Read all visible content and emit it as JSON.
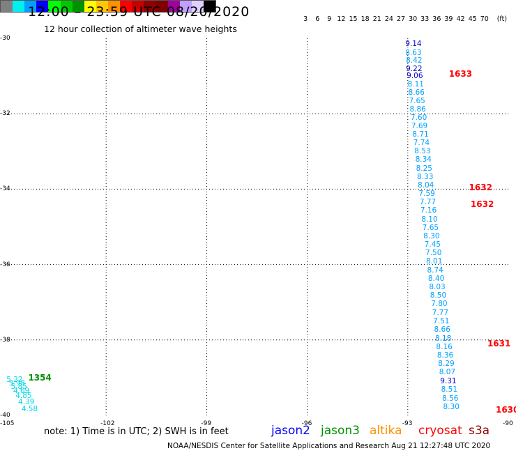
{
  "header": {
    "title": "12:00 – 23:59 UTC 08/20/2020",
    "subtitle": "12 hour collection of altimeter wave heights"
  },
  "legend": {
    "unit": "(ft)",
    "colors": [
      "#808080",
      "#00f0f0",
      "#00a0ff",
      "#0000ff",
      "#00ff00",
      "#00c800",
      "#009000",
      "#ffff00",
      "#ffc800",
      "#ff9000",
      "#ff0000",
      "#c80000",
      "#900000",
      "#800000",
      "#a000a0",
      "#c0a0ff",
      "#e0d0ff",
      "#000000"
    ],
    "ticks": [
      "3",
      "6",
      "9",
      "12",
      "15",
      "18",
      "21",
      "24",
      "27",
      "30",
      "33",
      "36",
      "39",
      "42",
      "45",
      "70"
    ]
  },
  "map": {
    "lon_range": [
      -105,
      -90
    ],
    "lat_range": [
      -40,
      -30
    ],
    "x_ticks": [
      "-105",
      "-102",
      "-99",
      "-96",
      "-93",
      "-90"
    ],
    "y_ticks": [
      "-30",
      "-32",
      "-34",
      "-36",
      "-38",
      "-40"
    ],
    "gridlines": true
  },
  "tracks": [
    {
      "satellite": "jason3",
      "color": "#009000",
      "time_labels": [
        {
          "text": "1354",
          "lon": -104.2,
          "lat": -39.0
        }
      ],
      "wave_heights": [
        {
          "text": "5.22",
          "lon": -104.85,
          "lat": -39.05,
          "color": "#00d8e8"
        },
        {
          "text": "5.98",
          "lon": -104.78,
          "lat": -39.15,
          "color": "#00d8e8"
        },
        {
          "text": "5.85",
          "lon": -104.72,
          "lat": -39.25,
          "color": "#00d8e8"
        },
        {
          "text": "4.69",
          "lon": -104.65,
          "lat": -39.35,
          "color": "#00d8e8"
        },
        {
          "text": "4.85",
          "lon": -104.58,
          "lat": -39.48,
          "color": "#00d8e8"
        },
        {
          "text": "4.39",
          "lon": -104.5,
          "lat": -39.65,
          "color": "#00d8e8"
        },
        {
          "text": "4.58",
          "lon": -104.4,
          "lat": -39.83,
          "color": "#00d8e8"
        }
      ]
    },
    {
      "satellite": "cryosat",
      "color": "#ff0000",
      "time_labels": [
        {
          "text": "1633",
          "lon": -91.65,
          "lat": -30.95
        },
        {
          "text": "1632",
          "lon": -91.05,
          "lat": -33.95
        },
        {
          "text": "1632",
          "lon": -91.0,
          "lat": -34.4
        },
        {
          "text": "1631",
          "lon": -90.5,
          "lat": -38.1
        },
        {
          "text": "1630",
          "lon": -90.25,
          "lat": -39.85
        }
      ],
      "wave_heights": [
        {
          "text": "9.14",
          "lon": -92.95,
          "lat": -30.15,
          "color": "#0000c8"
        },
        {
          "text": "8.63",
          "lon": -92.95,
          "lat": -30.38,
          "color": "#00a0ff"
        },
        {
          "text": "8.42",
          "lon": -92.93,
          "lat": -30.6,
          "color": "#00a0ff"
        },
        {
          "text": "9.22",
          "lon": -92.93,
          "lat": -30.82,
          "color": "#0000c8"
        },
        {
          "text": "9.06",
          "lon": -92.91,
          "lat": -31.0,
          "color": "#0000c8"
        },
        {
          "text": "8.11",
          "lon": -92.88,
          "lat": -31.22,
          "color": "#00a0ff"
        },
        {
          "text": "8.66",
          "lon": -92.86,
          "lat": -31.45,
          "color": "#00a0ff"
        },
        {
          "text": "7.65",
          "lon": -92.84,
          "lat": -31.66,
          "color": "#00a0ff"
        },
        {
          "text": "8.86",
          "lon": -92.82,
          "lat": -31.88,
          "color": "#00a0ff"
        },
        {
          "text": "7.60",
          "lon": -92.79,
          "lat": -32.1,
          "color": "#00a0ff"
        },
        {
          "text": "7.69",
          "lon": -92.77,
          "lat": -32.32,
          "color": "#00a0ff"
        },
        {
          "text": "8.71",
          "lon": -92.74,
          "lat": -32.55,
          "color": "#00a0ff"
        },
        {
          "text": "7.74",
          "lon": -92.71,
          "lat": -32.77,
          "color": "#00a0ff"
        },
        {
          "text": "8.53",
          "lon": -92.68,
          "lat": -33.0,
          "color": "#00a0ff"
        },
        {
          "text": "8.34",
          "lon": -92.65,
          "lat": -33.22,
          "color": "#00a0ff"
        },
        {
          "text": "8.25",
          "lon": -92.63,
          "lat": -33.45,
          "color": "#00a0ff"
        },
        {
          "text": "8.33",
          "lon": -92.6,
          "lat": -33.67,
          "color": "#00a0ff"
        },
        {
          "text": "8.04",
          "lon": -92.58,
          "lat": -33.9,
          "color": "#00a0ff"
        },
        {
          "text": "7.59",
          "lon": -92.55,
          "lat": -34.12,
          "color": "#00a0ff"
        },
        {
          "text": "7.77",
          "lon": -92.52,
          "lat": -34.35,
          "color": "#00a0ff"
        },
        {
          "text": "7.16",
          "lon": -92.5,
          "lat": -34.57,
          "color": "#00a0ff"
        },
        {
          "text": "8.10",
          "lon": -92.47,
          "lat": -34.8,
          "color": "#00a0ff"
        },
        {
          "text": "7.65",
          "lon": -92.44,
          "lat": -35.02,
          "color": "#00a0ff"
        },
        {
          "text": "8.30",
          "lon": -92.41,
          "lat": -35.25,
          "color": "#00a0ff"
        },
        {
          "text": "7.45",
          "lon": -92.38,
          "lat": -35.47,
          "color": "#00a0ff"
        },
        {
          "text": "7.50",
          "lon": -92.35,
          "lat": -35.7,
          "color": "#00a0ff"
        },
        {
          "text": "8.01",
          "lon": -92.33,
          "lat": -35.92,
          "color": "#00a0ff"
        },
        {
          "text": "8.74",
          "lon": -92.3,
          "lat": -36.15,
          "color": "#00a0ff"
        },
        {
          "text": "8.40",
          "lon": -92.27,
          "lat": -36.37,
          "color": "#00a0ff"
        },
        {
          "text": "8.03",
          "lon": -92.24,
          "lat": -36.6,
          "color": "#00a0ff"
        },
        {
          "text": "8.50",
          "lon": -92.21,
          "lat": -36.82,
          "color": "#00a0ff"
        },
        {
          "text": "7.80",
          "lon": -92.18,
          "lat": -37.05,
          "color": "#00a0ff"
        },
        {
          "text": "7.77",
          "lon": -92.15,
          "lat": -37.28,
          "color": "#00a0ff"
        },
        {
          "text": "7.51",
          "lon": -92.12,
          "lat": -37.5,
          "color": "#00a0ff"
        },
        {
          "text": "8.66",
          "lon": -92.09,
          "lat": -37.73,
          "color": "#00a0ff"
        },
        {
          "text": "8.18",
          "lon": -92.06,
          "lat": -37.96,
          "color": "#00a0ff"
        },
        {
          "text": "8.16",
          "lon": -92.03,
          "lat": -38.18,
          "color": "#00a0ff"
        },
        {
          "text": "8.36",
          "lon": -92.0,
          "lat": -38.41,
          "color": "#00a0ff"
        },
        {
          "text": "8.29",
          "lon": -91.97,
          "lat": -38.64,
          "color": "#00a0ff"
        },
        {
          "text": "8.07",
          "lon": -91.94,
          "lat": -38.86,
          "color": "#00a0ff"
        },
        {
          "text": "9.31",
          "lon": -91.91,
          "lat": -39.09,
          "color": "#0000c8"
        },
        {
          "text": "8.51",
          "lon": -91.88,
          "lat": -39.32,
          "color": "#00a0ff"
        },
        {
          "text": "8.56",
          "lon": -91.85,
          "lat": -39.55,
          "color": "#00a0ff"
        },
        {
          "text": "8.30",
          "lon": -91.82,
          "lat": -39.78,
          "color": "#00a0ff"
        }
      ]
    }
  ],
  "note": "note:  1) Time is in UTC;  2) SWH is in feet",
  "satellites": [
    {
      "name": "jason2",
      "color": "#0000ff"
    },
    {
      "name": "jason3",
      "color": "#009000"
    },
    {
      "name": "altika",
      "color": "#ff9000"
    },
    {
      "name": "cryosat",
      "color": "#ff0000"
    },
    {
      "name": "s3a",
      "color": "#900000"
    }
  ],
  "footer": "NOAA/NESDIS Center for Satellite Applications and Research    Aug 21 12:27:48 UTC 2020"
}
